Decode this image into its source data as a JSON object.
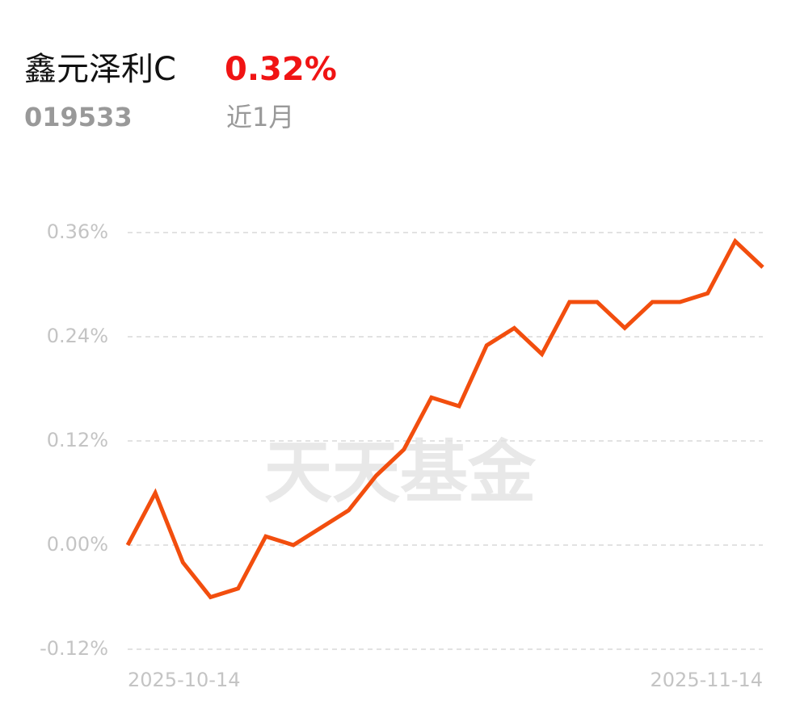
{
  "chart_data": {
    "type": "line",
    "title": "鑫元泽利C",
    "change": "0.32%",
    "code": "019533",
    "period": "近1月",
    "watermark": "天天基金",
    "categories": [
      "2025-10-14",
      null,
      null,
      null,
      null,
      null,
      null,
      null,
      null,
      null,
      null,
      null,
      null,
      null,
      null,
      null,
      null,
      null,
      null,
      null,
      null,
      null,
      null,
      "2025-11-14"
    ],
    "values": [
      0,
      0.06,
      -0.02,
      -0.06,
      -0.05,
      0.01,
      0,
      0.02,
      0.04,
      0.08,
      0.11,
      0.17,
      0.16,
      0.23,
      0.25,
      0.22,
      0.28,
      0.28,
      0.25,
      0.28,
      0.28,
      0.29,
      0.35,
      0.32
    ],
    "color": "#f24e0e",
    "ylim": [
      -0.12,
      0.36
    ],
    "yticks": [
      {
        "value": -0.12,
        "label": "-0.12%"
      },
      {
        "value": 0,
        "label": "0.00%"
      },
      {
        "value": 0.12,
        "label": "0.12%"
      },
      {
        "value": 0.24,
        "label": "0.24%"
      },
      {
        "value": 0.36,
        "label": "0.36%"
      }
    ],
    "grid": true
  }
}
